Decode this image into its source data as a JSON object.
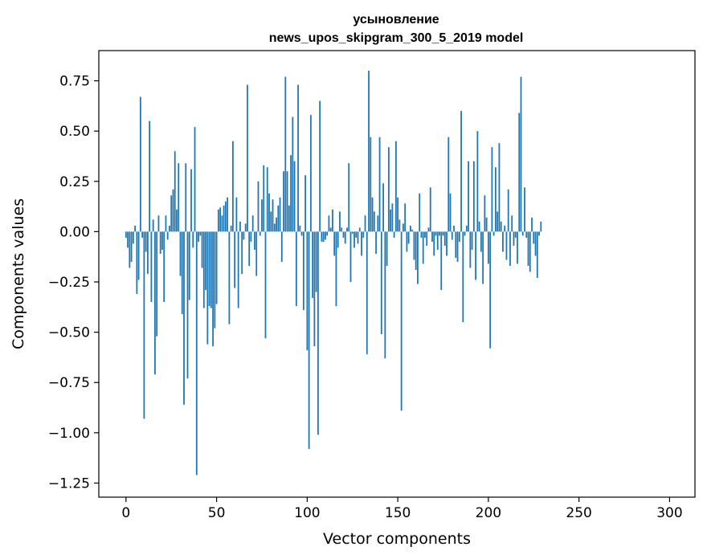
{
  "chart_data": {
    "type": "bar",
    "title": "усыновление",
    "subtitle": "news_upos_skipgram_300_5_2019 model",
    "xlabel": "Vector components",
    "ylabel": "Components values",
    "xlim": [
      -15,
      314
    ],
    "ylim": [
      -1.32,
      0.9
    ],
    "x_ticks": [
      0,
      50,
      100,
      150,
      200,
      250,
      300
    ],
    "x_tick_labels": [
      "0",
      "50",
      "100",
      "150",
      "200",
      "250",
      "300"
    ],
    "y_ticks": [
      0.75,
      0.5,
      0.25,
      0.0,
      -0.25,
      -0.5,
      -0.75,
      -1.0,
      -1.25
    ],
    "y_tick_labels": [
      "0.75",
      "0.50",
      "0.25",
      "0.00",
      "−0.25",
      "−0.50",
      "−0.75",
      "−1.00",
      "−1.25"
    ],
    "grid": false,
    "bar_color": "#1f77b4",
    "values": [
      -0.03,
      -0.08,
      -0.18,
      -0.15,
      -0.06,
      0.03,
      -0.31,
      -0.24,
      0.67,
      -0.03,
      -0.93,
      -0.1,
      -0.21,
      0.55,
      -0.35,
      0.06,
      -0.71,
      -0.52,
      0.08,
      -0.11,
      -0.09,
      -0.35,
      0.08,
      -0.04,
      0.03,
      0.18,
      0.21,
      0.4,
      0.11,
      0.34,
      -0.22,
      -0.41,
      -0.86,
      0.34,
      -0.73,
      -0.34,
      0.31,
      -0.08,
      0.52,
      -1.21,
      -0.05,
      -0.02,
      -0.18,
      -0.38,
      -0.29,
      -0.56,
      -0.37,
      -0.38,
      -0.57,
      -0.48,
      -0.36,
      0.11,
      0.12,
      0.08,
      0.13,
      0.15,
      0.17,
      -0.46,
      0.03,
      0.45,
      -0.28,
      0.17,
      -0.38,
      0.05,
      -0.21,
      -0.04,
      0.04,
      0.73,
      -0.17,
      -0.05,
      0.08,
      -0.09,
      -0.22,
      0.25,
      -0.02,
      0.16,
      0.33,
      -0.53,
      0.32,
      0.19,
      0.1,
      0.16,
      0.04,
      0.07,
      0.13,
      0.17,
      -0.15,
      0.3,
      0.77,
      0.3,
      0.13,
      0.38,
      0.57,
      0.35,
      -0.37,
      0.73,
      0.03,
      -0.02,
      -0.39,
      0.28,
      -0.59,
      -1.08,
      0.58,
      -0.33,
      -0.57,
      -0.3,
      -1.01,
      0.65,
      -0.05,
      -0.05,
      -0.04,
      -0.02,
      0.08,
      0.02,
      0.11,
      -0.12,
      -0.37,
      -0.08,
      0.1,
      0.02,
      -0.03,
      -0.06,
      0.02,
      0.34,
      -0.25,
      -0.01,
      -0.08,
      -0.03,
      -0.06,
      0.02,
      -0.12,
      -0.03,
      0.08,
      -0.61,
      0.8,
      0.47,
      0.17,
      0.1,
      -0.11,
      0.08,
      0.47,
      -0.51,
      0.24,
      -0.63,
      -0.17,
      0.42,
      0.11,
      0.14,
      -0.03,
      0.45,
      0.17,
      0.06,
      -0.89,
      0.04,
      0.14,
      -0.1,
      -0.06,
      0.03,
      0.01,
      -0.14,
      -0.19,
      -0.26,
      0.19,
      -0.03,
      -0.16,
      -0.03,
      -0.07,
      0.02,
      0.22,
      -0.05,
      -0.12,
      -0.02,
      -0.09,
      -0.02,
      -0.29,
      -0.02,
      -0.07,
      -0.12,
      0.47,
      0.19,
      -0.04,
      0.03,
      -0.13,
      -0.15,
      -0.05,
      0.6,
      -0.45,
      -0.02,
      0.03,
      0.35,
      -0.18,
      -0.09,
      0.35,
      -0.24,
      0.5,
      0.05,
      -0.1,
      -0.26,
      0.18,
      0.07,
      -0.16,
      -0.58,
      0.42,
      -0.02,
      0.32,
      0.1,
      0.44,
      0.05,
      -0.1,
      0.03,
      -0.14,
      0.21,
      -0.17,
      0.08,
      -0.07,
      -0.03,
      -0.16,
      0.59,
      0.77,
      -0.02,
      0.22,
      -0.03,
      -0.17,
      -0.2,
      0.07,
      -0.06,
      -0.12,
      -0.23,
      -0.02,
      0.05
    ]
  }
}
